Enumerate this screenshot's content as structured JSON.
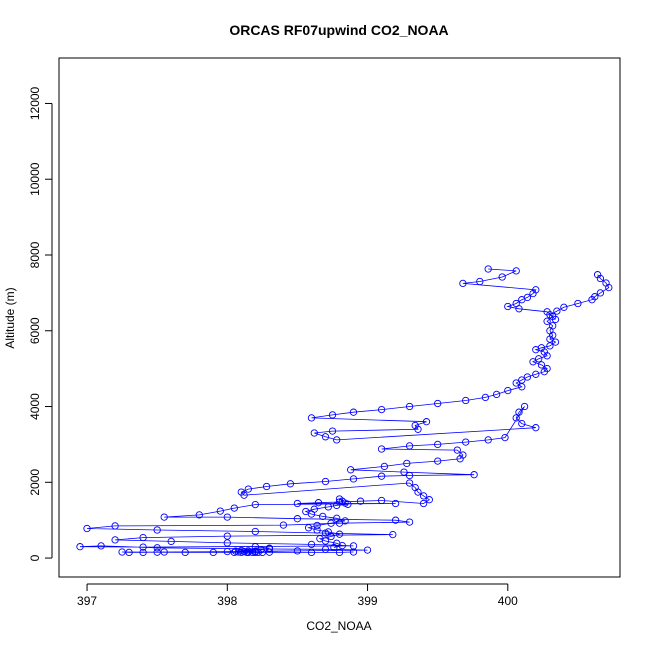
{
  "chart_data": {
    "type": "line",
    "title": "ORCAS RF07upwind CO2_NOAA",
    "xlabel": "CO2_NOAA",
    "ylabel": "Altitude (m)",
    "xlim": [
      396.8,
      400.8
    ],
    "ylim": [
      -500,
      13200
    ],
    "xticks": [
      397,
      398,
      399,
      400
    ],
    "yticks": [
      0,
      2000,
      4000,
      6000,
      8000,
      10000,
      12000
    ],
    "grid": false,
    "legend": "none",
    "marker": "open-circle",
    "color": "#0000ff",
    "series": [
      {
        "points": [
          [
            399.86,
            7630
          ],
          [
            400.06,
            7580
          ],
          [
            399.96,
            7420
          ],
          [
            399.8,
            7300
          ],
          [
            399.68,
            7250
          ],
          [
            400.2,
            7080
          ],
          [
            400.18,
            6980
          ],
          [
            400.14,
            6880
          ],
          [
            400.1,
            6820
          ],
          [
            400.06,
            6720
          ],
          [
            400.0,
            6640
          ],
          [
            400.08,
            6580
          ],
          [
            400.28,
            6500
          ],
          [
            400.32,
            6380
          ],
          [
            400.28,
            6250
          ],
          [
            400.32,
            6130
          ],
          [
            400.3,
            6000
          ],
          [
            400.32,
            5880
          ],
          [
            400.3,
            5780
          ],
          [
            400.34,
            5700
          ],
          [
            400.3,
            5600
          ],
          [
            400.24,
            5550
          ],
          [
            400.2,
            5500
          ],
          [
            400.26,
            5440
          ],
          [
            400.28,
            5340
          ],
          [
            400.22,
            5260
          ],
          [
            400.18,
            5180
          ],
          [
            400.24,
            5100
          ],
          [
            400.28,
            5000
          ],
          [
            400.26,
            4920
          ],
          [
            400.2,
            4850
          ],
          [
            400.14,
            4780
          ],
          [
            400.1,
            4700
          ],
          [
            400.06,
            4620
          ],
          [
            400.1,
            4520
          ],
          [
            400.0,
            4420
          ],
          [
            399.92,
            4320
          ],
          [
            399.84,
            4240
          ],
          [
            399.7,
            4160
          ],
          [
            399.5,
            4080
          ],
          [
            399.3,
            4000
          ],
          [
            399.1,
            3920
          ],
          [
            398.9,
            3850
          ],
          [
            398.75,
            3780
          ],
          [
            398.6,
            3700
          ],
          [
            399.42,
            3600
          ],
          [
            399.34,
            3500
          ],
          [
            399.36,
            3400
          ],
          [
            398.75,
            3350
          ],
          [
            398.62,
            3300
          ],
          [
            398.7,
            3200
          ],
          [
            398.78,
            3120
          ],
          [
            400.2,
            3440
          ],
          [
            400.1,
            3550
          ],
          [
            400.06,
            3700
          ],
          [
            400.08,
            3850
          ],
          [
            400.12,
            4000
          ],
          [
            399.98,
            3180
          ],
          [
            399.86,
            3120
          ],
          [
            399.7,
            3060
          ],
          [
            399.5,
            3000
          ],
          [
            399.3,
            2960
          ],
          [
            399.1,
            2880
          ],
          [
            399.64,
            2850
          ],
          [
            399.68,
            2720
          ],
          [
            399.66,
            2620
          ],
          [
            399.5,
            2560
          ],
          [
            399.28,
            2500
          ],
          [
            399.12,
            2420
          ],
          [
            398.88,
            2330
          ],
          [
            399.26,
            2270
          ],
          [
            399.76,
            2200
          ],
          [
            399.3,
            2180
          ],
          [
            399.1,
            2160
          ],
          [
            398.9,
            2090
          ],
          [
            398.7,
            2020
          ],
          [
            398.45,
            1960
          ],
          [
            398.28,
            1890
          ],
          [
            398.15,
            1820
          ],
          [
            398.1,
            1740
          ],
          [
            398.12,
            1660
          ],
          [
            399.3,
            1980
          ],
          [
            399.34,
            1860
          ],
          [
            399.36,
            1740
          ],
          [
            399.4,
            1640
          ],
          [
            399.44,
            1540
          ],
          [
            399.4,
            1440
          ],
          [
            399.1,
            1520
          ],
          [
            398.95,
            1500
          ],
          [
            398.8,
            1480
          ],
          [
            398.65,
            1460
          ],
          [
            398.5,
            1440
          ],
          [
            399.2,
            1440
          ],
          [
            398.2,
            1410
          ],
          [
            398.05,
            1320
          ],
          [
            397.95,
            1240
          ],
          [
            397.8,
            1140
          ],
          [
            397.55,
            1080
          ],
          [
            398.0,
            1080
          ],
          [
            398.5,
            1040
          ],
          [
            399.2,
            1000
          ],
          [
            399.3,
            950
          ],
          [
            398.8,
            920
          ],
          [
            398.4,
            870
          ],
          [
            397.2,
            850
          ],
          [
            397.0,
            780
          ],
          [
            397.5,
            740
          ],
          [
            398.2,
            700
          ],
          [
            398.7,
            660
          ],
          [
            399.18,
            620
          ],
          [
            398.0,
            580
          ],
          [
            397.4,
            540
          ],
          [
            397.2,
            480
          ],
          [
            397.6,
            440
          ],
          [
            398.0,
            400
          ],
          [
            398.6,
            360
          ],
          [
            398.9,
            320
          ],
          [
            397.4,
            290
          ],
          [
            396.95,
            300
          ],
          [
            397.1,
            320
          ],
          [
            397.5,
            270
          ],
          [
            398.3,
            240
          ],
          [
            398.7,
            230
          ],
          [
            399.0,
            210
          ],
          [
            398.5,
            190
          ],
          [
            398.0,
            170
          ],
          [
            397.55,
            160
          ],
          [
            397.4,
            150
          ],
          [
            397.3,
            150
          ],
          [
            397.25,
            160
          ],
          [
            397.5,
            155
          ],
          [
            397.7,
            150
          ],
          [
            397.9,
            150
          ],
          [
            398.05,
            150
          ],
          [
            398.1,
            150
          ],
          [
            398.15,
            150
          ],
          [
            398.2,
            150
          ],
          [
            398.25,
            150
          ],
          [
            398.3,
            155
          ],
          [
            398.6,
            150
          ],
          [
            398.8,
            150
          ],
          [
            398.9,
            160
          ]
        ]
      },
      {
        "points": [
          [
            400.64,
            7480
          ],
          [
            400.66,
            7380
          ],
          [
            400.7,
            7260
          ],
          [
            400.72,
            7140
          ],
          [
            400.66,
            7000
          ],
          [
            400.62,
            6900
          ],
          [
            400.6,
            6820
          ],
          [
            400.5,
            6720
          ],
          [
            400.4,
            6620
          ],
          [
            400.35,
            6520
          ],
          [
            400.3,
            6420
          ],
          [
            400.34,
            6300
          ]
        ]
      },
      {
        "points": [
          [
            398.8,
            1560
          ],
          [
            398.82,
            1500
          ],
          [
            398.84,
            1450
          ],
          [
            398.86,
            1420
          ],
          [
            398.78,
            1390
          ],
          [
            398.72,
            1350
          ],
          [
            398.62,
            1290
          ],
          [
            398.56,
            1230
          ],
          [
            398.6,
            1160
          ],
          [
            398.68,
            1100
          ],
          [
            398.78,
            1050
          ],
          [
            398.84,
            980
          ],
          [
            398.74,
            920
          ],
          [
            398.64,
            860
          ],
          [
            398.58,
            800
          ],
          [
            398.64,
            740
          ],
          [
            398.72,
            690
          ],
          [
            398.8,
            630
          ],
          [
            398.74,
            570
          ],
          [
            398.66,
            510
          ],
          [
            398.7,
            450
          ],
          [
            398.78,
            390
          ],
          [
            398.82,
            330
          ],
          [
            398.76,
            280
          ]
        ]
      },
      {
        "points": [
          [
            398.1,
            200
          ],
          [
            398.15,
            190
          ],
          [
            398.2,
            180
          ],
          [
            398.12,
            170
          ],
          [
            398.08,
            160
          ],
          [
            398.14,
            150
          ],
          [
            398.18,
            150
          ],
          [
            398.22,
            150
          ],
          [
            398.06,
            180
          ],
          [
            398.24,
            220
          ],
          [
            398.3,
            260
          ],
          [
            398.2,
            300
          ]
        ]
      }
    ]
  }
}
